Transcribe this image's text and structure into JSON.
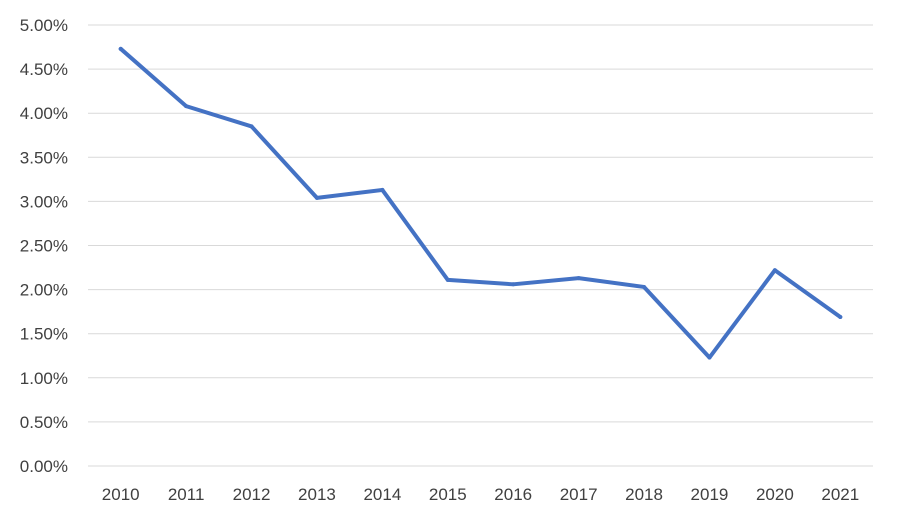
{
  "chart_data": {
    "type": "line",
    "title": "",
    "xlabel": "",
    "ylabel": "",
    "categories": [
      "2010",
      "2011",
      "2012",
      "2013",
      "2014",
      "2015",
      "2016",
      "2017",
      "2018",
      "2019",
      "2020",
      "2021"
    ],
    "series": [
      {
        "values": [
          4.73,
          4.08,
          3.85,
          3.04,
          3.13,
          2.11,
          2.06,
          2.13,
          2.03,
          1.23,
          2.22,
          1.69
        ],
        "color": "#4472c4"
      }
    ],
    "ylim": [
      0,
      5
    ],
    "y_ticks": [
      0,
      0.5,
      1,
      1.5,
      2,
      2.5,
      3,
      3.5,
      4,
      4.5,
      5
    ],
    "y_tick_labels": [
      "0.00%",
      "0.50%",
      "1.00%",
      "1.50%",
      "2.00%",
      "2.50%",
      "3.00%",
      "3.50%",
      "4.00%",
      "4.50%",
      "5.00%"
    ],
    "y_unit": "percent",
    "grid": true,
    "legend": "none"
  }
}
